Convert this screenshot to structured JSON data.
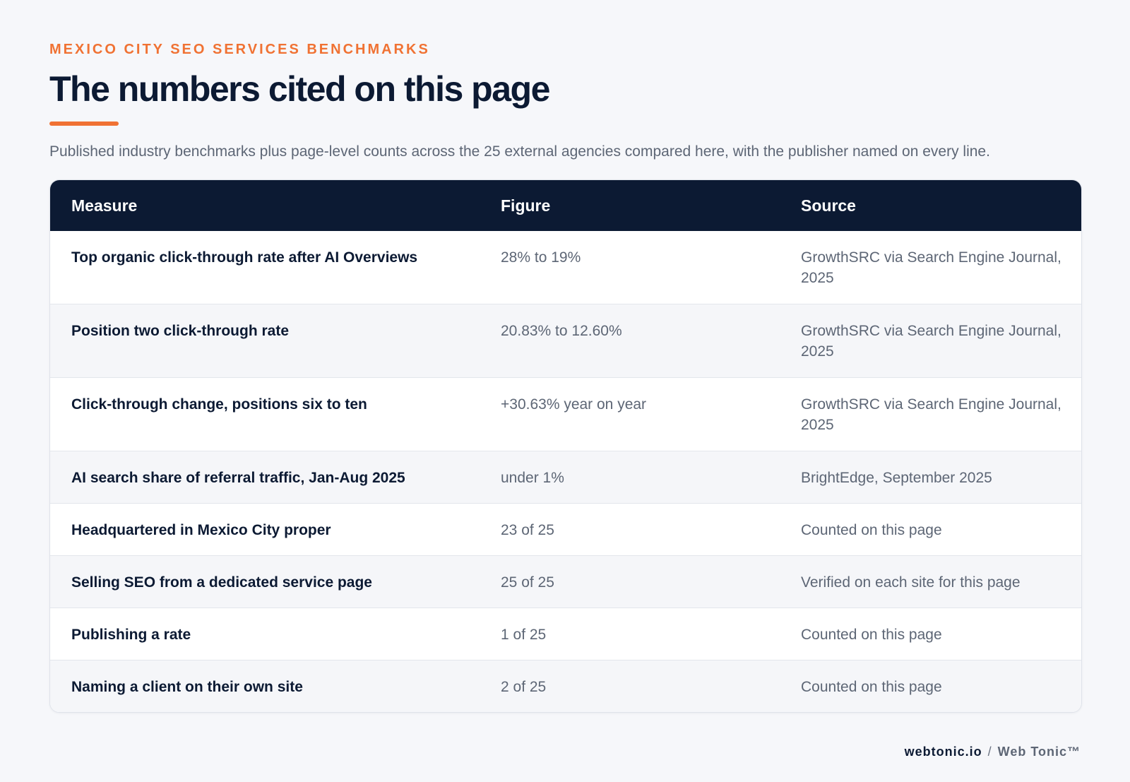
{
  "header": {
    "eyebrow": "MEXICO CITY SEO SERVICES BENCHMARKS",
    "title": "The numbers cited on this page",
    "subtitle": "Published industry benchmarks plus page-level counts across the 25 external agencies compared here, with the publisher named on every line."
  },
  "table": {
    "columns": [
      "Measure",
      "Figure",
      "Source"
    ],
    "rows": [
      {
        "measure": "Top organic click-through rate after AI Overviews",
        "figure": "28% to 19%",
        "source": "GrowthSRC via Search Engine Journal, 2025"
      },
      {
        "measure": "Position two click-through rate",
        "figure": "20.83% to 12.60%",
        "source": "GrowthSRC via Search Engine Journal, 2025"
      },
      {
        "measure": "Click-through change, positions six to ten",
        "figure": "+30.63% year on year",
        "source": "GrowthSRC via Search Engine Journal, 2025"
      },
      {
        "measure": "AI search share of referral traffic, Jan-Aug 2025",
        "figure": "under 1%",
        "source": "BrightEdge, September 2025"
      },
      {
        "measure": "Headquartered in Mexico City proper",
        "figure": "23 of 25",
        "source": "Counted on this page"
      },
      {
        "measure": "Selling SEO from a dedicated service page",
        "figure": "25 of 25",
        "source": "Verified on each site for this page"
      },
      {
        "measure": "Publishing a rate",
        "figure": "1 of 25",
        "source": "Counted on this page"
      },
      {
        "measure": "Naming a client on their own site",
        "figure": "2 of 25",
        "source": "Counted on this page"
      }
    ]
  },
  "footer": {
    "domain": "webtonic.io",
    "separator": "/",
    "brand": "Web Tonic™"
  },
  "colors": {
    "accent": "#f07233",
    "navy": "#0c1a33",
    "muted_text": "#5d6675",
    "page_background": "#f6f7fa"
  }
}
